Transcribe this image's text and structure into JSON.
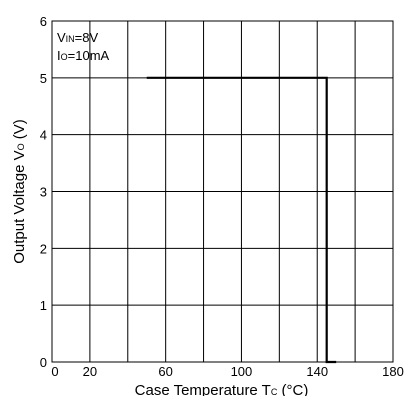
{
  "chart_data": {
    "type": "line",
    "title": "",
    "xlabel": "Case Temperature Tc (°C)",
    "xlabel_parts": {
      "main": "Case Temperature T",
      "sub": "C",
      "unit": " (°C)"
    },
    "ylabel": "Output Voltage Vo (V)",
    "ylabel_parts": {
      "main": "Output Voltage V",
      "sub": "O",
      "unit": " (V)"
    },
    "xlim": [
      0,
      180
    ],
    "ylim": [
      0,
      6
    ],
    "xticks": [
      0,
      20,
      60,
      100,
      140,
      180
    ],
    "yticks": [
      0,
      1,
      2,
      3,
      4,
      5,
      6
    ],
    "x_gridlines": [
      20,
      40,
      60,
      80,
      100,
      120,
      140,
      160
    ],
    "y_gridlines": [
      1,
      2,
      3,
      4,
      5
    ],
    "grid": true,
    "annotations": [
      {
        "main": "V",
        "sub": "IN",
        "rest": "=8V"
      },
      {
        "main": "I",
        "sub": "O",
        "rest": "=10mA"
      }
    ],
    "series": [
      {
        "color": "#000000",
        "x": [
          50,
          145,
          145,
          150
        ],
        "y": [
          5,
          5,
          0,
          0
        ]
      }
    ]
  }
}
